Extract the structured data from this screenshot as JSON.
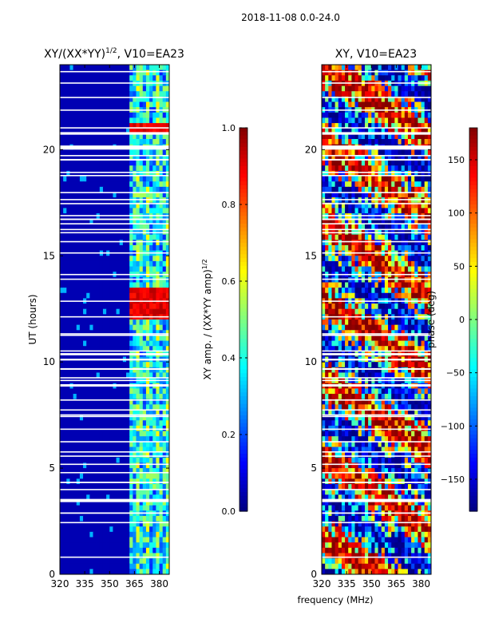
{
  "figure": {
    "suptitle": "2018-11-08 0.0-24.0",
    "shared_xlabel": "frequency (MHz)"
  },
  "chart_data": [
    {
      "type": "heatmap",
      "title_prefix": "XY/(XX*YY)",
      "title_exp": "1/2",
      "title_suffix": ", V10=EA23",
      "xlabel": "",
      "ylabel": "UT (hours)",
      "xlim": [
        320,
        386
      ],
      "ylim": [
        0,
        24
      ],
      "xticks": [
        320,
        335,
        350,
        365,
        380
      ],
      "yticks": [
        0,
        5,
        10,
        15,
        20
      ],
      "colorbar": {
        "label_prefix": "XY amp. / (XX*YY amp)",
        "label_exp": "1/2",
        "range": [
          0.0,
          1.0
        ],
        "ticks": [
          0.0,
          0.2,
          0.4,
          0.6,
          0.8,
          1.0
        ],
        "tick_labels": [
          "0.0",
          "0.2",
          "0.4",
          "0.6",
          "0.8",
          "1.0"
        ],
        "colormap": "jet"
      },
      "description_values": {
        "low_band_mhz": [
          320,
          363
        ],
        "low_band_level": 0.05,
        "active_band_mhz": [
          363,
          384
        ],
        "active_band_level_range": [
          0.15,
          0.55
        ],
        "high_value_hours": [
          [
            12.0,
            13.5
          ],
          [
            20.8,
            21.3
          ]
        ],
        "high_value_level": 0.85
      }
    },
    {
      "type": "heatmap",
      "title_prefix": "XY, V10=EA23",
      "title_exp": "",
      "title_suffix": "",
      "xlabel": "frequency (MHz)",
      "ylabel": "",
      "xlim": [
        320,
        386
      ],
      "ylim": [
        0,
        24
      ],
      "xticks": [
        320,
        335,
        350,
        365,
        380
      ],
      "yticks": [
        0,
        5,
        10,
        15,
        20
      ],
      "colorbar": {
        "label_prefix": "phase (deg)",
        "label_exp": "",
        "range": [
          -180,
          180
        ],
        "ticks": [
          -150,
          -100,
          -50,
          0,
          50,
          100,
          150
        ],
        "tick_labels": [
          "−150",
          "−100",
          "−50",
          "0",
          "50",
          "100",
          "150"
        ],
        "colormap": "jet"
      },
      "description_values": {
        "phase_range_deg": [
          -180,
          180
        ]
      }
    }
  ]
}
